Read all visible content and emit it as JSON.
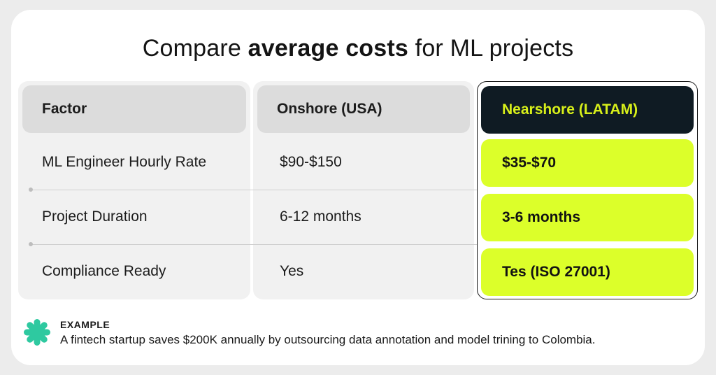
{
  "title": {
    "prefix": "Compare ",
    "bold": "average costs",
    "suffix": " for ML projects"
  },
  "columns": [
    {
      "header": "Factor",
      "cells": [
        "ML Engineer Hourly Rate",
        "Project Duration",
        "Compliance Ready"
      ]
    },
    {
      "header": "Onshore (USA)",
      "cells": [
        "$90-$150",
        "6-12 months",
        "Yes"
      ]
    },
    {
      "header": "Nearshore (LATAM)",
      "cells": [
        "$35-$70",
        "3-6 months",
        "Tes (ISO 27001)"
      ]
    }
  ],
  "colors": {
    "accent": "#dcff2a",
    "dark": "#0f1b23",
    "icon": "#2ec9a0"
  },
  "example": {
    "icon": "asterisk-icon",
    "label": "EXAMPLE",
    "text": "A fintech startup saves $200K annually by outsourcing data annotation and model trining to Colombia."
  }
}
